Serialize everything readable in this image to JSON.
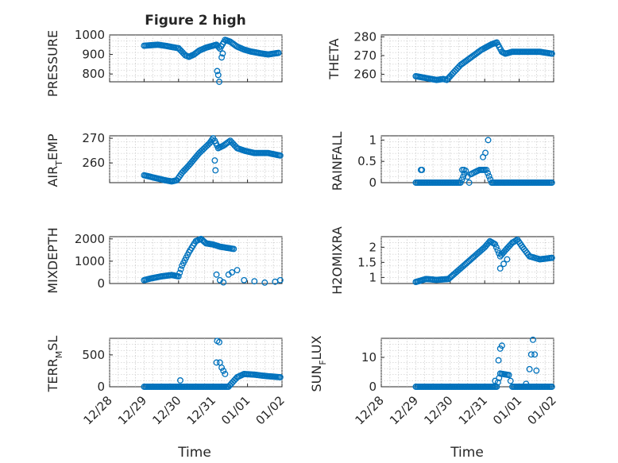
{
  "figure_title": "Figure 2 high",
  "colors": {
    "marker": "#0072BD",
    "axes": "#262626",
    "grid": "#bdbdbd",
    "background": "#ffffff"
  },
  "x_axis": {
    "label": "Time",
    "tick_labels": [
      "12/28",
      "12/29",
      "12/30",
      "12/31",
      "01/01",
      "01/02"
    ],
    "tick_values": [
      0,
      1,
      2,
      3,
      4,
      5
    ],
    "range": [
      0,
      5
    ],
    "units_note_hidden": true
  },
  "chart_data": [
    {
      "type": "scatter",
      "ylabel": "PRESSURE",
      "ylim": [
        760,
        1000
      ],
      "yticks": [
        800,
        900,
        1000
      ],
      "ytick_labels": [
        "800",
        "900",
        "1000"
      ],
      "grid": true,
      "anchors": [
        [
          1.0,
          945
        ],
        [
          1.4,
          950
        ],
        [
          1.6,
          945
        ],
        [
          1.75,
          940
        ],
        [
          2.0,
          932
        ],
        [
          2.2,
          895
        ],
        [
          2.3,
          888
        ],
        [
          2.45,
          900
        ],
        [
          2.6,
          920
        ],
        [
          2.8,
          935
        ],
        [
          3.0,
          945
        ],
        [
          3.1,
          950
        ],
        [
          3.2,
          930
        ],
        [
          3.35,
          975
        ],
        [
          3.5,
          965
        ],
        [
          3.7,
          940
        ],
        [
          3.9,
          925
        ],
        [
          4.1,
          915
        ],
        [
          4.4,
          905
        ],
        [
          4.6,
          900
        ],
        [
          4.9,
          908
        ]
      ],
      "extra_points": [
        [
          3.12,
          815
        ],
        [
          3.15,
          795
        ],
        [
          3.18,
          760
        ],
        [
          3.25,
          885
        ],
        [
          3.28,
          905
        ]
      ]
    },
    {
      "type": "scatter",
      "ylabel": "THETA",
      "ylim": [
        256,
        281
      ],
      "yticks": [
        260,
        270,
        280
      ],
      "ytick_labels": [
        "260",
        "270",
        "280"
      ],
      "grid": true,
      "anchors": [
        [
          1.0,
          259
        ],
        [
          1.3,
          258
        ],
        [
          1.6,
          257
        ],
        [
          1.8,
          257.5
        ],
        [
          1.9,
          257
        ],
        [
          2.0,
          259
        ],
        [
          2.3,
          265
        ],
        [
          2.6,
          269
        ],
        [
          2.9,
          273
        ],
        [
          3.2,
          276
        ],
        [
          3.35,
          277
        ],
        [
          3.5,
          272
        ],
        [
          3.6,
          271
        ],
        [
          3.8,
          272
        ],
        [
          4.2,
          272
        ],
        [
          4.6,
          272
        ],
        [
          4.95,
          271
        ]
      ],
      "extra_points": []
    },
    {
      "type": "scatter",
      "ylabel": "AIR_TEMP",
      "ylim": [
        252,
        271
      ],
      "yticks": [
        260,
        270
      ],
      "ytick_labels": [
        "260",
        "270"
      ],
      "grid": true,
      "anchors": [
        [
          1.0,
          255
        ],
        [
          1.3,
          254
        ],
        [
          1.6,
          253
        ],
        [
          1.8,
          252.5
        ],
        [
          1.95,
          253
        ],
        [
          2.1,
          256
        ],
        [
          2.3,
          259
        ],
        [
          2.6,
          264
        ],
        [
          2.9,
          268
        ],
        [
          3.0,
          270
        ],
        [
          3.05,
          269
        ],
        [
          3.15,
          266
        ],
        [
          3.3,
          267
        ],
        [
          3.5,
          269
        ],
        [
          3.7,
          266
        ],
        [
          3.9,
          265
        ],
        [
          4.2,
          264
        ],
        [
          4.6,
          264
        ],
        [
          4.95,
          263
        ]
      ],
      "extra_points": [
        [
          3.05,
          261
        ],
        [
          3.07,
          257
        ]
      ]
    },
    {
      "type": "scatter",
      "ylabel": "RAINFALL",
      "ylim": [
        0,
        1.1
      ],
      "yticks": [
        0,
        0.5,
        1
      ],
      "ytick_labels": [
        "0",
        "0.5",
        "1"
      ],
      "grid": true,
      "anchors": [
        [
          1.0,
          0
        ],
        [
          2.3,
          0
        ],
        [
          2.45,
          0.28
        ],
        [
          2.55,
          0
        ],
        [
          2.6,
          0.2
        ],
        [
          2.85,
          0.3
        ],
        [
          3.0,
          0.3
        ],
        [
          3.05,
          0.3
        ],
        [
          3.2,
          0
        ],
        [
          4.95,
          0
        ]
      ],
      "extra_points": [
        [
          1.15,
          0.3
        ],
        [
          1.18,
          0.3
        ],
        [
          2.35,
          0.3
        ],
        [
          2.4,
          0.3
        ],
        [
          2.95,
          0.6
        ],
        [
          3.02,
          0.7
        ],
        [
          3.1,
          1.0
        ]
      ]
    },
    {
      "type": "scatter",
      "ylabel": "MIXDEPTH",
      "ylim": [
        0,
        2100
      ],
      "yticks": [
        0,
        1000,
        2000
      ],
      "ytick_labels": [
        "0",
        "1000",
        "2000"
      ],
      "grid": true,
      "anchors": [
        [
          1.0,
          150
        ],
        [
          1.2,
          230
        ],
        [
          1.5,
          320
        ],
        [
          1.8,
          380
        ],
        [
          2.0,
          320
        ],
        [
          2.1,
          800
        ],
        [
          2.3,
          1400
        ],
        [
          2.5,
          1900
        ],
        [
          2.65,
          2000
        ],
        [
          2.8,
          1800
        ],
        [
          3.0,
          1750
        ],
        [
          3.2,
          1650
        ],
        [
          3.4,
          1600
        ],
        [
          3.6,
          1550
        ]
      ],
      "extra_points": [
        [
          3.1,
          400
        ],
        [
          3.2,
          150
        ],
        [
          3.3,
          50
        ],
        [
          3.45,
          400
        ],
        [
          3.55,
          500
        ],
        [
          3.7,
          600
        ],
        [
          3.9,
          150
        ],
        [
          4.2,
          100
        ],
        [
          4.5,
          40
        ],
        [
          4.8,
          80
        ],
        [
          4.95,
          150
        ]
      ]
    },
    {
      "type": "scatter",
      "ylabel": "H2OMIXRA",
      "ylim": [
        0.8,
        2.35
      ],
      "yticks": [
        1,
        1.5,
        2
      ],
      "ytick_labels": [
        "1",
        "1.5",
        "2"
      ],
      "grid": true,
      "anchors": [
        [
          1.0,
          0.85
        ],
        [
          1.3,
          0.95
        ],
        [
          1.6,
          0.92
        ],
        [
          1.95,
          0.95
        ],
        [
          2.1,
          1.1
        ],
        [
          2.4,
          1.4
        ],
        [
          2.7,
          1.7
        ],
        [
          3.0,
          2.0
        ],
        [
          3.15,
          2.2
        ],
        [
          3.3,
          2.1
        ],
        [
          3.45,
          1.7
        ],
        [
          3.6,
          1.9
        ],
        [
          3.8,
          2.15
        ],
        [
          3.95,
          2.25
        ],
        [
          4.1,
          2.0
        ],
        [
          4.3,
          1.7
        ],
        [
          4.6,
          1.6
        ],
        [
          4.95,
          1.65
        ]
      ],
      "extra_points": [
        [
          3.45,
          1.3
        ],
        [
          3.55,
          1.45
        ],
        [
          3.65,
          1.6
        ]
      ]
    },
    {
      "type": "scatter",
      "ylabel": "TERR_MSL",
      "ylim": [
        0,
        760
      ],
      "yticks": [
        0,
        500
      ],
      "ytick_labels": [
        "0",
        "500"
      ],
      "grid": true,
      "anchors": [
        [
          1.0,
          0
        ],
        [
          3.05,
          0
        ],
        [
          3.25,
          0
        ],
        [
          3.45,
          0
        ],
        [
          3.7,
          150
        ],
        [
          3.9,
          200
        ],
        [
          4.2,
          190
        ],
        [
          4.5,
          170
        ],
        [
          4.95,
          150
        ]
      ],
      "extra_points": [
        [
          2.05,
          100
        ],
        [
          3.12,
          720
        ],
        [
          3.18,
          700
        ],
        [
          3.1,
          380
        ],
        [
          3.2,
          380
        ],
        [
          3.25,
          300
        ],
        [
          3.3,
          250
        ],
        [
          3.35,
          200
        ]
      ]
    },
    {
      "type": "scatter",
      "ylabel": "SUN_FLUX",
      "ylim": [
        0,
        16.5
      ],
      "yticks": [
        0,
        10
      ],
      "ytick_labels": [
        "0",
        "10"
      ],
      "grid": true,
      "anchors": [
        [
          1.0,
          0
        ],
        [
          3.2,
          0
        ],
        [
          3.35,
          0
        ],
        [
          3.45,
          4.5
        ],
        [
          3.7,
          4
        ],
        [
          3.8,
          0
        ],
        [
          4.3,
          0
        ],
        [
          4.95,
          0
        ]
      ],
      "extra_points": [
        [
          3.3,
          2
        ],
        [
          3.4,
          9
        ],
        [
          3.45,
          13
        ],
        [
          3.5,
          14
        ],
        [
          4.2,
          1
        ],
        [
          4.3,
          6
        ],
        [
          4.35,
          11
        ],
        [
          4.4,
          16
        ],
        [
          4.45,
          11
        ],
        [
          4.5,
          5.5
        ]
      ]
    }
  ]
}
